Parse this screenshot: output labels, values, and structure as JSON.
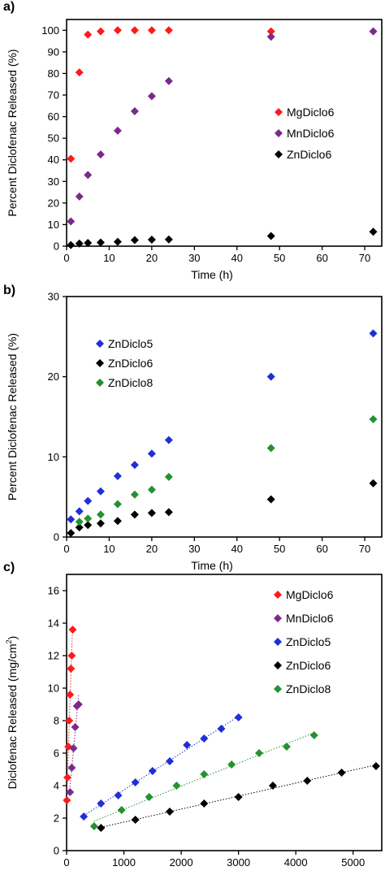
{
  "panel_labels": [
    "a)",
    "b)",
    "c)"
  ],
  "chart_data": [
    {
      "type": "scatter",
      "xlabel": "Time (h)",
      "ylabel": "Percent Diclofenac Released (%)",
      "xlim": [
        0,
        74
      ],
      "ylim": [
        0,
        105
      ],
      "xticks": [
        0,
        10,
        20,
        30,
        40,
        50,
        60,
        70
      ],
      "yticks": [
        0,
        10,
        20,
        30,
        40,
        50,
        60,
        70,
        80,
        90,
        100
      ],
      "legend_position": "right",
      "grid": false,
      "series": [
        {
          "name": "MgDiclo6",
          "color": "#ff1a1a",
          "x": [
            1,
            3,
            5,
            8,
            12,
            16,
            20,
            24,
            48
          ],
          "y": [
            40.5,
            80.5,
            98,
            99.5,
            100,
            100,
            100,
            100,
            99.5
          ]
        },
        {
          "name": "MnDiclo6",
          "color": "#7b2a8c",
          "x": [
            1,
            3,
            5,
            8,
            12,
            16,
            20,
            24,
            48,
            72
          ],
          "y": [
            11.5,
            23,
            33,
            42.5,
            53.5,
            62.5,
            69.5,
            76.5,
            97,
            99.5
          ]
        },
        {
          "name": "ZnDiclo6",
          "color": "#000000",
          "x": [
            1,
            3,
            5,
            8,
            12,
            16,
            20,
            24,
            48,
            72
          ],
          "y": [
            0.5,
            1.2,
            1.5,
            1.7,
            2.0,
            2.8,
            3.0,
            3.1,
            4.7,
            6.7
          ]
        }
      ]
    },
    {
      "type": "scatter",
      "xlabel": "Time (h)",
      "ylabel": "Percent Diclofenac Released (%)",
      "xlim": [
        0,
        74
      ],
      "ylim": [
        0,
        30
      ],
      "xticks": [
        0,
        10,
        20,
        30,
        40,
        50,
        60,
        70
      ],
      "yticks": [
        0,
        10,
        20,
        30
      ],
      "legend_position": "top-left",
      "grid": false,
      "series": [
        {
          "name": "ZnDiclo5",
          "color": "#1f2fd6",
          "x": [
            1,
            3,
            5,
            8,
            12,
            16,
            20,
            24,
            48,
            72
          ],
          "y": [
            2.2,
            3.2,
            4.5,
            5.7,
            7.6,
            9.0,
            10.4,
            12.1,
            20.0,
            25.4
          ]
        },
        {
          "name": "ZnDiclo6",
          "color": "#000000",
          "x": [
            1,
            3,
            5,
            8,
            12,
            16,
            20,
            24,
            48,
            72
          ],
          "y": [
            0.5,
            1.2,
            1.5,
            1.7,
            2.0,
            2.8,
            3.0,
            3.1,
            4.7,
            6.7
          ]
        },
        {
          "name": "ZnDiclo8",
          "color": "#23922f",
          "x": [
            3,
            5,
            8,
            12,
            16,
            20,
            24,
            48,
            72
          ],
          "y": [
            1.9,
            2.3,
            2.8,
            4.1,
            5.3,
            5.9,
            7.5,
            11.1,
            14.7
          ]
        }
      ]
    },
    {
      "type": "scatter",
      "xlabel": "Time (min)",
      "ylabel": "Diclofenac Released (mg/cm",
      "ylabel_sup": "2",
      "ylabel_end": ")",
      "xlim": [
        0,
        5500
      ],
      "ylim": [
        0,
        17
      ],
      "xticks": [
        0,
        1000,
        2000,
        3000,
        4000,
        5000
      ],
      "yticks": [
        0,
        2,
        4,
        6,
        8,
        10,
        12,
        14,
        16
      ],
      "legend_position": "top-right",
      "grid": false,
      "trendlines": true,
      "series": [
        {
          "name": "MgDiclo6",
          "color": "#ff1a1a",
          "x": [
            5,
            15,
            30,
            45,
            60,
            75,
            90,
            105
          ],
          "y": [
            3.1,
            4.5,
            6.4,
            8.0,
            9.6,
            11.2,
            12.0,
            13.6
          ]
        },
        {
          "name": "MnDiclo6",
          "color": "#7b2a8c",
          "x": [
            60,
            90,
            120,
            150,
            180,
            210
          ],
          "y": [
            3.6,
            5.1,
            6.3,
            7.6,
            8.9,
            9.0
          ]
        },
        {
          "name": "ZnDiclo5",
          "color": "#1f2fd6",
          "x": [
            300,
            600,
            900,
            1200,
            1500,
            1800,
            2100,
            2400,
            2700,
            3000
          ],
          "y": [
            2.1,
            2.9,
            3.4,
            4.2,
            4.9,
            5.5,
            6.5,
            6.9,
            7.5,
            8.2
          ]
        },
        {
          "name": "ZnDiclo6",
          "color": "#000000",
          "x": [
            600,
            1200,
            1800,
            2400,
            3000,
            3600,
            4200,
            4800,
            5400
          ],
          "y": [
            1.4,
            1.9,
            2.4,
            2.9,
            3.3,
            4.0,
            4.3,
            4.8,
            5.2
          ]
        },
        {
          "name": "ZnDiclo8",
          "color": "#23922f",
          "x": [
            480,
            960,
            1440,
            1920,
            2400,
            2880,
            3360,
            3840,
            4320
          ],
          "y": [
            1.5,
            2.5,
            3.3,
            4.0,
            4.7,
            5.3,
            6.0,
            6.4,
            7.1
          ]
        }
      ]
    }
  ]
}
